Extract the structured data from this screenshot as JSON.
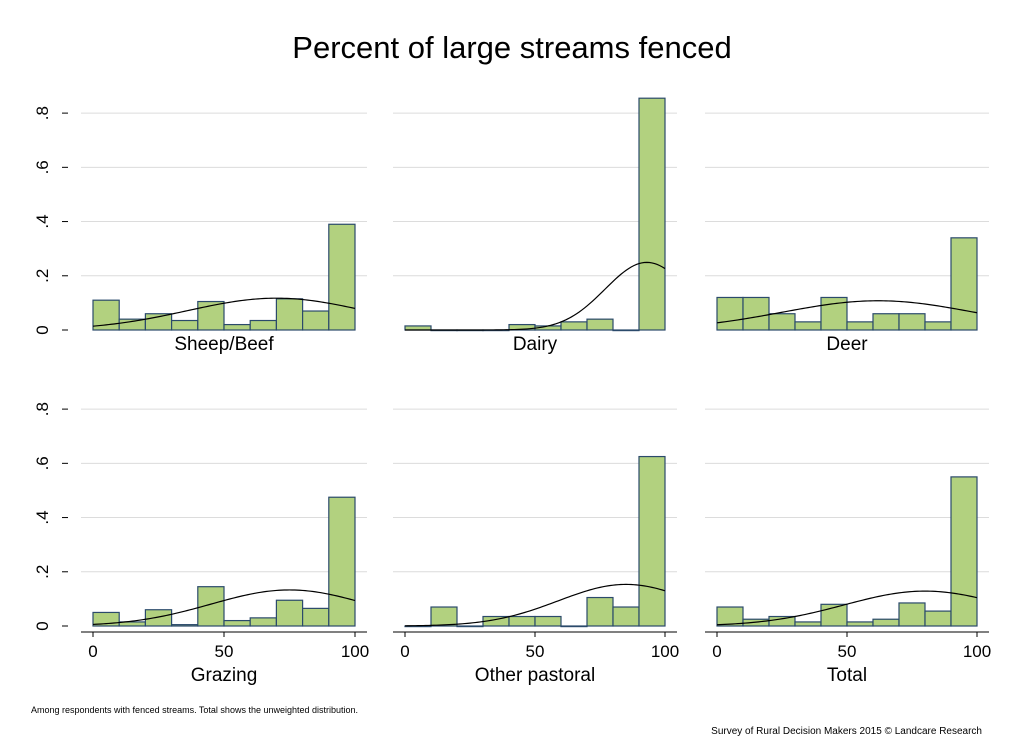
{
  "colors": {
    "bar_fill": "#b2d17f",
    "bar_stroke": "#2b4a6b",
    "grid": "#dcdcdc",
    "curve": "#000000"
  },
  "chart_data": {
    "type": "bar",
    "title": "Percent of large streams fenced",
    "ylim": [
      0,
      0.9
    ],
    "xlim": [
      0,
      100
    ],
    "yticks": [
      0,
      0.2,
      0.4,
      0.6,
      0.8
    ],
    "ytick_labels": [
      "0",
      ".2",
      ".4",
      ".6",
      ".8"
    ],
    "xticks": [
      0,
      50,
      100
    ],
    "xtick_labels": [
      "0",
      "50",
      "100"
    ],
    "bins": [
      0,
      10,
      20,
      30,
      40,
      50,
      60,
      70,
      80,
      90,
      100
    ],
    "grid": true,
    "overlay": "normal density curve",
    "panels": [
      {
        "name": "Sheep/Beef",
        "values": [
          0.11,
          0.04,
          0.06,
          0.035,
          0.105,
          0.02,
          0.035,
          0.115,
          0.07,
          0.39
        ],
        "normal": {
          "mean": 70,
          "sd": 34
        }
      },
      {
        "name": "Dairy",
        "values": [
          0.015,
          0.0,
          0.0,
          0.0,
          0.02,
          0.015,
          0.03,
          0.04,
          0.0,
          0.855
        ],
        "normal": {
          "mean": 93,
          "sd": 16
        }
      },
      {
        "name": "Deer",
        "values": [
          0.12,
          0.12,
          0.06,
          0.03,
          0.12,
          0.03,
          0.06,
          0.06,
          0.03,
          0.34
        ],
        "normal": {
          "mean": 62,
          "sd": 37
        }
      },
      {
        "name": "Grazing",
        "values": [
          0.05,
          0.015,
          0.06,
          0.005,
          0.145,
          0.02,
          0.03,
          0.095,
          0.065,
          0.475
        ],
        "normal": {
          "mean": 75,
          "sd": 30
        }
      },
      {
        "name": "Other pastoral",
        "values": [
          0.0,
          0.07,
          0.0,
          0.035,
          0.035,
          0.035,
          0.0,
          0.105,
          0.07,
          0.625
        ],
        "normal": {
          "mean": 85,
          "sd": 26
        }
      },
      {
        "name": "Total",
        "values": [
          0.07,
          0.025,
          0.035,
          0.015,
          0.08,
          0.015,
          0.025,
          0.085,
          0.055,
          0.55
        ],
        "normal": {
          "mean": 80,
          "sd": 31
        }
      }
    ],
    "notes": {
      "left": "Among respondents with fenced streams. Total shows the unweighted distribution.",
      "right": "Survey of Rural Decision Makers 2015 © Landcare Research"
    }
  }
}
